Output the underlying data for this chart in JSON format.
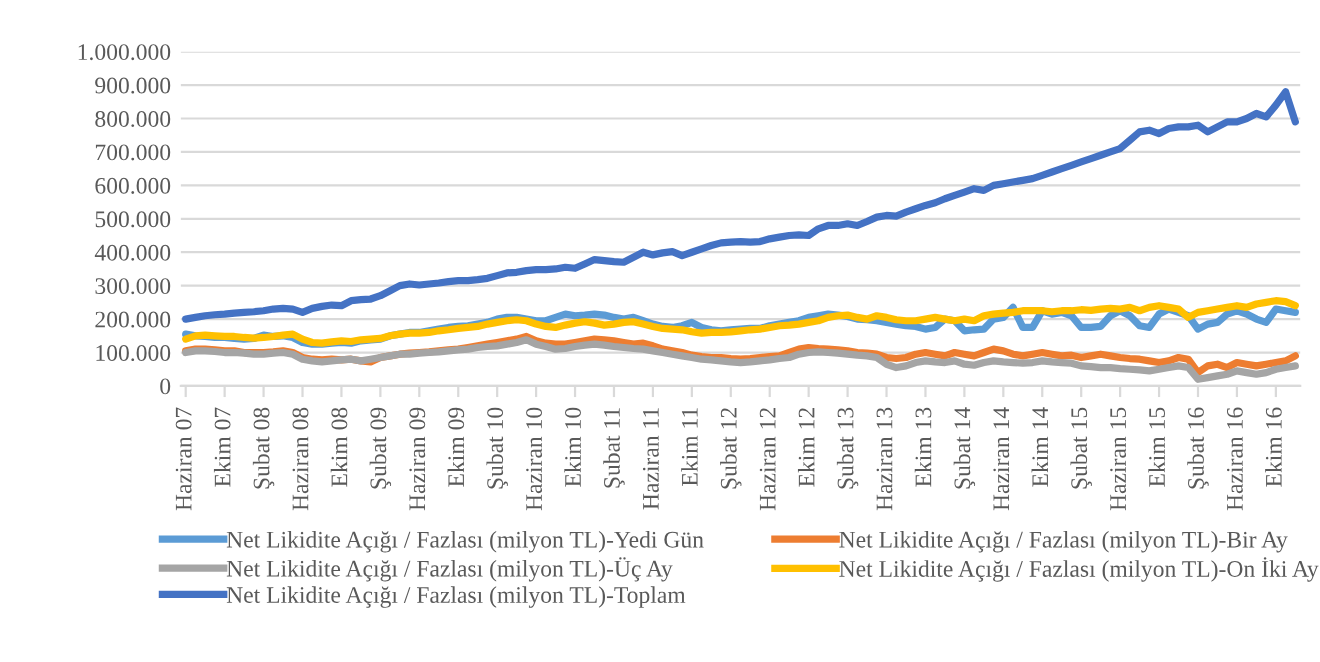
{
  "chart_data": {
    "type": "line",
    "categories": [
      "Haziran 07",
      null,
      null,
      null,
      "Ekim 07",
      null,
      null,
      null,
      "Şubat 08",
      null,
      null,
      null,
      "Haziran 08",
      null,
      null,
      null,
      "Ekim 08",
      null,
      null,
      null,
      "Şubat 09",
      null,
      null,
      null,
      "Haziran 09",
      null,
      null,
      null,
      "Ekim 09",
      null,
      null,
      null,
      "Şubat 10",
      null,
      null,
      null,
      "Haziran 10",
      null,
      null,
      null,
      "Ekim 10",
      null,
      null,
      null,
      "Şubat 11",
      null,
      null,
      null,
      "Haziran 11",
      null,
      null,
      null,
      "Ekim 11",
      null,
      null,
      null,
      "Şubat 12",
      null,
      null,
      null,
      "Haziran 12",
      null,
      null,
      null,
      "Ekim 12",
      null,
      null,
      null,
      "Şubat 13",
      null,
      null,
      null,
      "Haziran 13",
      null,
      null,
      null,
      "Ekim 13",
      null,
      null,
      null,
      "Şubat 14",
      null,
      null,
      null,
      "Haziran 14",
      null,
      null,
      null,
      "Ekim 14",
      null,
      null,
      null,
      "Şubat 15",
      null,
      null,
      null,
      "Haziran 15",
      null,
      null,
      null,
      "Ekim 15",
      null,
      null,
      null,
      "Şubat 16",
      null,
      null,
      null,
      "Haziran 16",
      null,
      null,
      null,
      "Ekim 16",
      null,
      null
    ],
    "series": [
      {
        "name": "Net Likidite Açığı / Fazlası (milyon TL)-Yedi Gün",
        "color": "#5b9bd5",
        "values": [
          155000,
          150000,
          148000,
          145000,
          145000,
          142000,
          140000,
          142000,
          152000,
          148000,
          150000,
          145000,
          130000,
          125000,
          125000,
          128000,
          130000,
          128000,
          135000,
          138000,
          140000,
          150000,
          155000,
          160000,
          160000,
          165000,
          170000,
          175000,
          178000,
          180000,
          185000,
          190000,
          200000,
          205000,
          205000,
          200000,
          195000,
          195000,
          205000,
          215000,
          210000,
          212000,
          215000,
          212000,
          205000,
          200000,
          205000,
          195000,
          185000,
          178000,
          175000,
          180000,
          190000,
          175000,
          168000,
          165000,
          168000,
          170000,
          172000,
          172000,
          180000,
          185000,
          190000,
          195000,
          205000,
          210000,
          215000,
          212000,
          208000,
          200000,
          198000,
          195000,
          190000,
          185000,
          180000,
          178000,
          170000,
          175000,
          200000,
          195000,
          165000,
          168000,
          170000,
          200000,
          205000,
          235000,
          175000,
          175000,
          225000,
          215000,
          220000,
          210000,
          175000,
          175000,
          178000,
          210000,
          225000,
          210000,
          180000,
          175000,
          215000,
          230000,
          220000,
          210000,
          170000,
          185000,
          190000,
          215000,
          225000,
          215000,
          200000,
          190000,
          230000,
          225000,
          220000
        ]
      },
      {
        "name": "Net Likidite Açığı / Fazlası (milyon TL)-Bir Ay",
        "color": "#ed7d31",
        "values": [
          105000,
          110000,
          110000,
          108000,
          105000,
          105000,
          100000,
          100000,
          100000,
          102000,
          105000,
          100000,
          85000,
          80000,
          78000,
          80000,
          78000,
          80000,
          75000,
          72000,
          85000,
          90000,
          95000,
          98000,
          100000,
          102000,
          105000,
          108000,
          110000,
          115000,
          120000,
          125000,
          130000,
          135000,
          140000,
          148000,
          135000,
          128000,
          125000,
          125000,
          130000,
          135000,
          140000,
          138000,
          135000,
          130000,
          125000,
          128000,
          120000,
          110000,
          105000,
          100000,
          92000,
          88000,
          85000,
          85000,
          82000,
          80000,
          82000,
          85000,
          88000,
          90000,
          100000,
          110000,
          115000,
          112000,
          110000,
          108000,
          105000,
          100000,
          98000,
          95000,
          85000,
          82000,
          85000,
          95000,
          100000,
          95000,
          90000,
          100000,
          95000,
          90000,
          100000,
          110000,
          105000,
          95000,
          90000,
          95000,
          100000,
          95000,
          90000,
          92000,
          85000,
          90000,
          95000,
          90000,
          85000,
          82000,
          80000,
          75000,
          70000,
          75000,
          85000,
          80000,
          40000,
          60000,
          65000,
          55000,
          70000,
          65000,
          60000,
          65000,
          70000,
          75000,
          90000
        ]
      },
      {
        "name": "Net Likidite Açığı / Fazlası (milyon TL)-Üç Ay",
        "color": "#a5a5a5",
        "values": [
          100000,
          105000,
          105000,
          103000,
          100000,
          100000,
          98000,
          95000,
          95000,
          98000,
          100000,
          95000,
          80000,
          75000,
          72000,
          75000,
          78000,
          80000,
          75000,
          80000,
          85000,
          90000,
          95000,
          95000,
          98000,
          100000,
          102000,
          105000,
          108000,
          110000,
          115000,
          118000,
          120000,
          125000,
          130000,
          138000,
          125000,
          118000,
          110000,
          112000,
          118000,
          122000,
          125000,
          122000,
          118000,
          115000,
          112000,
          110000,
          105000,
          100000,
          95000,
          90000,
          85000,
          80000,
          78000,
          75000,
          72000,
          70000,
          72000,
          75000,
          78000,
          82000,
          85000,
          95000,
          100000,
          102000,
          100000,
          98000,
          95000,
          92000,
          90000,
          85000,
          65000,
          55000,
          60000,
          70000,
          75000,
          72000,
          70000,
          75000,
          65000,
          62000,
          70000,
          75000,
          72000,
          70000,
          68000,
          70000,
          75000,
          72000,
          70000,
          68000,
          60000,
          58000,
          55000,
          55000,
          52000,
          50000,
          48000,
          45000,
          50000,
          55000,
          60000,
          55000,
          20000,
          25000,
          30000,
          35000,
          45000,
          40000,
          35000,
          40000,
          50000,
          55000,
          60000
        ]
      },
      {
        "name": "Net Likidite Açığı / Fazlası (milyon TL)-On İki Ay",
        "color": "#ffc000",
        "values": [
          140000,
          150000,
          152000,
          150000,
          148000,
          148000,
          145000,
          143000,
          145000,
          148000,
          152000,
          155000,
          140000,
          130000,
          128000,
          132000,
          135000,
          133000,
          138000,
          140000,
          142000,
          150000,
          155000,
          158000,
          158000,
          160000,
          165000,
          168000,
          172000,
          175000,
          178000,
          185000,
          190000,
          195000,
          198000,
          195000,
          185000,
          178000,
          175000,
          182000,
          188000,
          192000,
          188000,
          182000,
          185000,
          190000,
          192000,
          185000,
          178000,
          172000,
          170000,
          168000,
          162000,
          158000,
          160000,
          160000,
          162000,
          165000,
          168000,
          170000,
          175000,
          180000,
          182000,
          185000,
          190000,
          195000,
          205000,
          210000,
          212000,
          205000,
          200000,
          210000,
          205000,
          198000,
          195000,
          195000,
          200000,
          205000,
          200000,
          195000,
          200000,
          195000,
          210000,
          215000,
          218000,
          220000,
          225000,
          225000,
          225000,
          222000,
          225000,
          225000,
          228000,
          226000,
          230000,
          232000,
          230000,
          235000,
          225000,
          235000,
          240000,
          235000,
          230000,
          205000,
          220000,
          225000,
          230000,
          235000,
          240000,
          235000,
          245000,
          250000,
          255000,
          252000,
          240000
        ]
      },
      {
        "name": "Net Likidite Açığı / Fazlası (milyon TL)-Toplam",
        "color": "#4472c4",
        "values": [
          200000,
          205000,
          210000,
          213000,
          215000,
          218000,
          220000,
          222000,
          225000,
          230000,
          232000,
          230000,
          220000,
          232000,
          238000,
          242000,
          240000,
          255000,
          258000,
          260000,
          270000,
          285000,
          300000,
          305000,
          302000,
          305000,
          308000,
          312000,
          315000,
          315000,
          318000,
          322000,
          330000,
          338000,
          340000,
          345000,
          348000,
          348000,
          350000,
          355000,
          352000,
          365000,
          378000,
          375000,
          372000,
          370000,
          385000,
          400000,
          392000,
          398000,
          402000,
          390000,
          400000,
          410000,
          420000,
          428000,
          430000,
          432000,
          430000,
          432000,
          440000,
          445000,
          450000,
          452000,
          450000,
          470000,
          480000,
          480000,
          485000,
          480000,
          492000,
          505000,
          510000,
          508000,
          520000,
          530000,
          540000,
          548000,
          560000,
          570000,
          580000,
          590000,
          585000,
          600000,
          605000,
          610000,
          615000,
          620000,
          630000,
          640000,
          650000,
          660000,
          670000,
          680000,
          690000,
          700000,
          710000,
          735000,
          760000,
          765000,
          755000,
          770000,
          775000,
          775000,
          780000,
          760000,
          775000,
          790000,
          790000,
          800000,
          815000,
          805000,
          840000,
          880000,
          790000
        ]
      }
    ],
    "ylim": [
      0,
      1000000
    ],
    "yticks": [
      {
        "value": 0,
        "label": "0"
      },
      {
        "value": 100000,
        "label": "100.000"
      },
      {
        "value": 200000,
        "label": "200.000"
      },
      {
        "value": 300000,
        "label": "300.000"
      },
      {
        "value": 400000,
        "label": "400.000"
      },
      {
        "value": 500000,
        "label": "500.000"
      },
      {
        "value": 600000,
        "label": "600.000"
      },
      {
        "value": 700000,
        "label": "700.000"
      },
      {
        "value": 800000,
        "label": "800.000"
      },
      {
        "value": 900000,
        "label": "900.000"
      },
      {
        "value": 1000000,
        "label": "1.000.000"
      }
    ],
    "grid": "y",
    "legend": "bottom",
    "marker": "none",
    "line_style": "solid"
  }
}
